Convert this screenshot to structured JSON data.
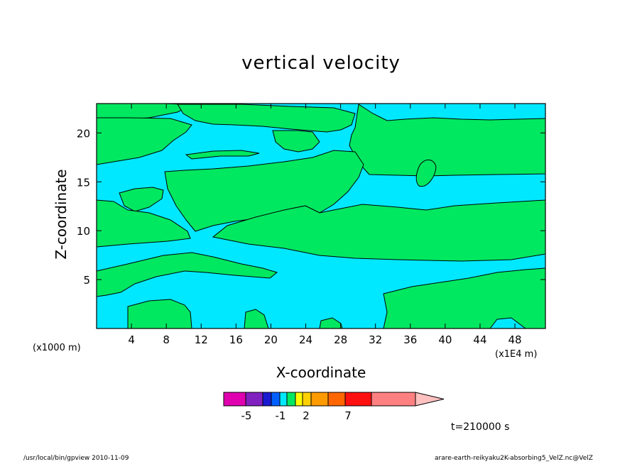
{
  "chart_data": {
    "type": "heatmap",
    "title": "vertical velocity",
    "xlabel": "X-coordinate",
    "ylabel": "Z-coordinate",
    "x_unit": "(x1E4 m)",
    "y_unit": "(x1000 m)",
    "xlim": [
      0,
      51.5
    ],
    "ylim": [
      0,
      23
    ],
    "x_ticks": [
      4,
      8,
      12,
      16,
      20,
      24,
      28,
      32,
      36,
      40,
      44,
      48
    ],
    "y_ticks": [
      5,
      10,
      15,
      20
    ],
    "x_tick_labels": [
      "4",
      "8",
      "12",
      "16",
      "20",
      "24",
      "28",
      "32",
      "36",
      "40",
      "44",
      "48"
    ],
    "y_tick_labels": [
      "5",
      "10",
      "15",
      "20"
    ],
    "time_label": "t=210000 s",
    "colorbar": {
      "labels": [
        {
          "text": "-5",
          "value": -5
        },
        {
          "text": "-1",
          "value": -1
        },
        {
          "text": "2",
          "value": 2
        },
        {
          "text": "7",
          "value": 7
        }
      ],
      "bins": [
        {
          "color": "#e000b0"
        },
        {
          "color": "#8020c0"
        },
        {
          "color": "#1a1ad0"
        },
        {
          "color": "#0060ff"
        },
        {
          "color": "#00e8ff"
        },
        {
          "color": "#00e860"
        },
        {
          "color": "#ffff00"
        },
        {
          "color": "#ffd000"
        },
        {
          "color": "#ff9a00"
        },
        {
          "color": "#ff6600"
        },
        {
          "color": "#ff1010"
        },
        {
          "color": "#ff8080"
        },
        {
          "color": "#ffc0c0"
        }
      ]
    },
    "regions": {
      "background_color": "#00e8ff",
      "fill_color": "#00e860",
      "background_value_range": [
        -1,
        0
      ],
      "fill_value_range": [
        0,
        1
      ]
    }
  },
  "footer": {
    "left": "/usr/local/bin/gpview   2010-11-09",
    "right": "arare-earth-reikyaku2K-absorbing5_VelZ.nc@VelZ"
  }
}
